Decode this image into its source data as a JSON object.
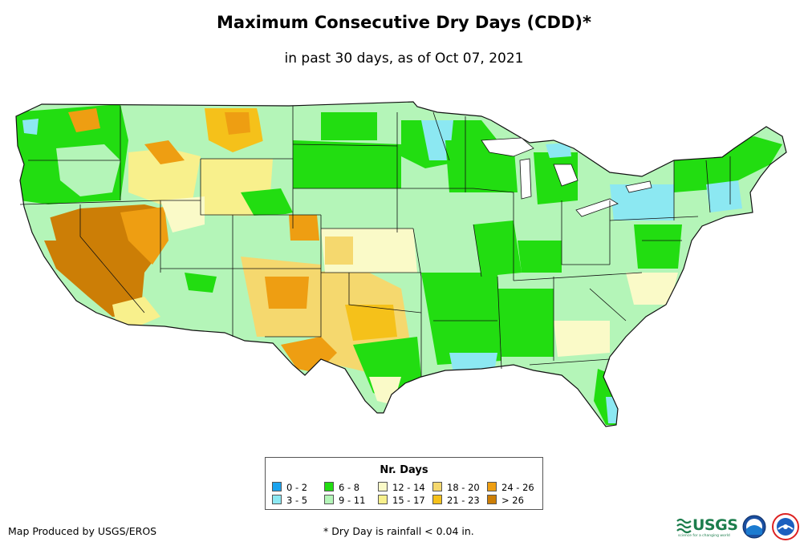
{
  "title": "Maximum Consecutive Dry Days (CDD)*",
  "subtitle": "in past 30 days, as of Oct 07, 2021",
  "legend": {
    "title": "Nr. Days",
    "items": [
      {
        "label": "0 - 2",
        "color": "#1aa3ee"
      },
      {
        "label": "3 - 5",
        "color": "#8ce8f2"
      },
      {
        "label": "6 - 8",
        "color": "#22dd11"
      },
      {
        "label": "9 - 11",
        "color": "#b4f5b8"
      },
      {
        "label": "12 - 14",
        "color": "#fafac8"
      },
      {
        "label": "15 - 17",
        "color": "#f8f08c"
      },
      {
        "label": "18 - 20",
        "color": "#f5d86e"
      },
      {
        "label": "21 - 23",
        "color": "#f5c11a"
      },
      {
        "label": "24 - 26",
        "color": "#ee9e12"
      },
      {
        "label": "> 26",
        "color": "#cc7e06"
      }
    ]
  },
  "credit": "Map Produced by USGS/EROS",
  "footnote": "* Dry Day is rainfall < 0.04 in.",
  "logos": {
    "usgs": "USGS",
    "usgs_tagline": "science for a changing world",
    "noaa_icon": "noaa-logo-icon",
    "nws_icon": "nws-logo-icon"
  }
}
